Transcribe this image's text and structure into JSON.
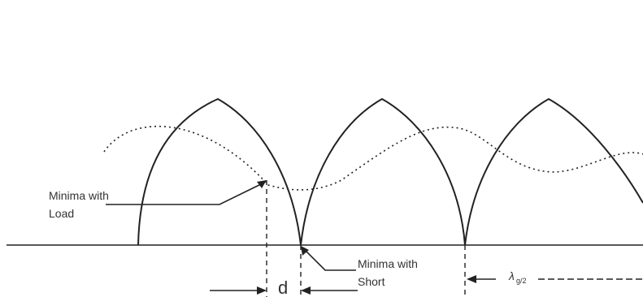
{
  "labels": {
    "minima_load_line1": "Minima with",
    "minima_load_line2": "Load",
    "minima_short_line1": "Minima with",
    "minima_short_line2": "Short",
    "d": "d",
    "lambda": "λ",
    "lambda_sub": "g/2"
  }
}
